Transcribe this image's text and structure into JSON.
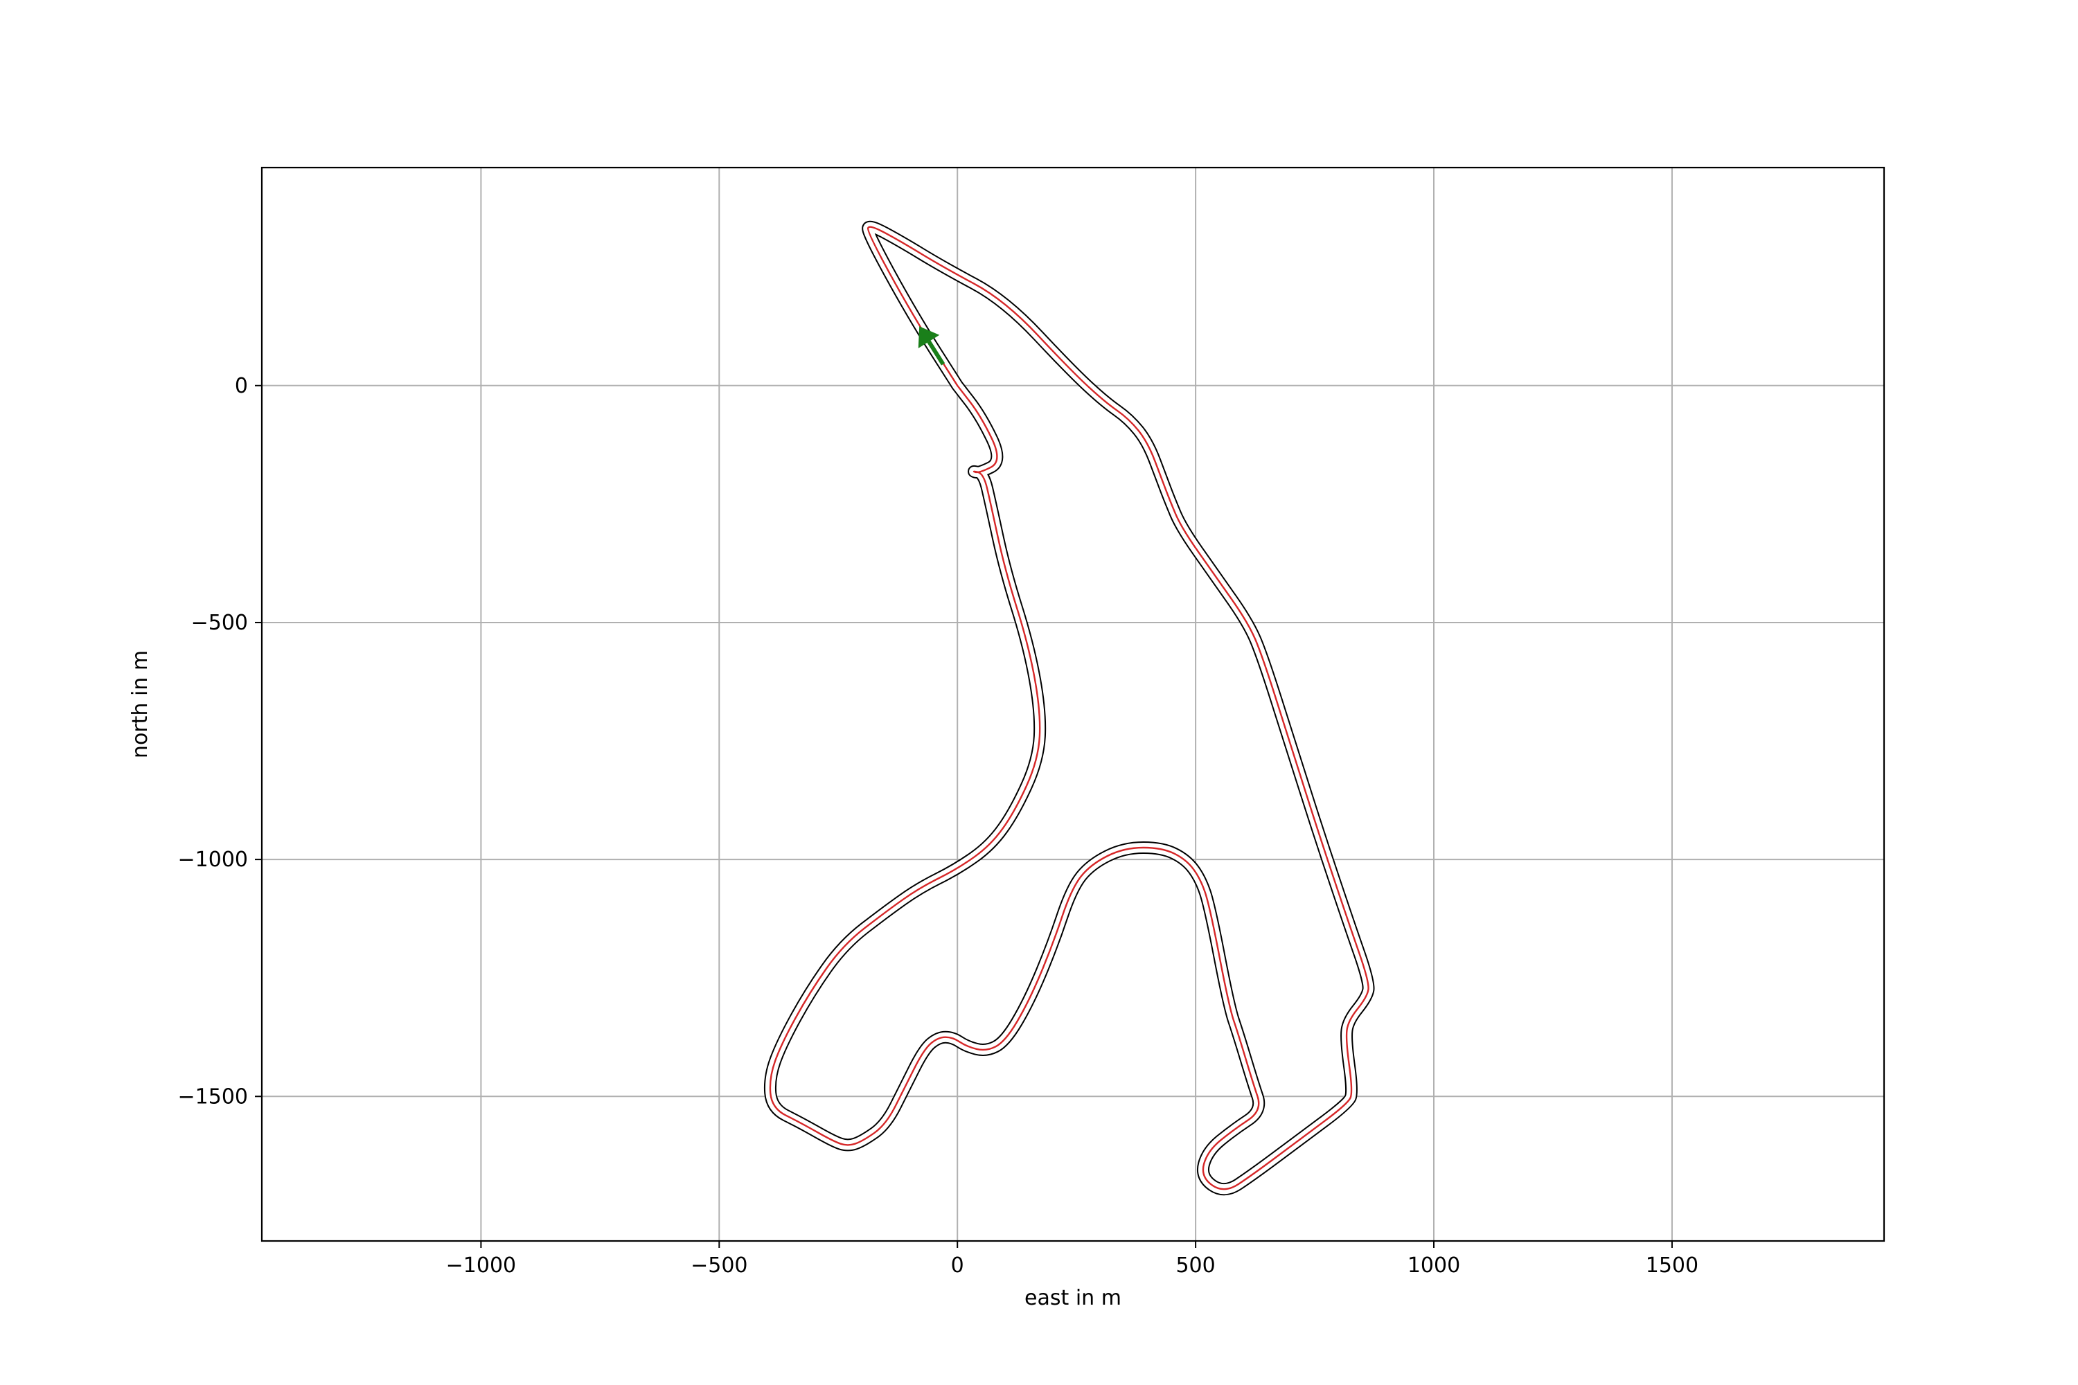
{
  "chart_data": {
    "type": "line",
    "title": "",
    "xlabel": "east in m",
    "ylabel": "north in m",
    "xlim": [
      -1460,
      1945
    ],
    "ylim": [
      -1805,
      460
    ],
    "xticks": [
      -1000,
      -500,
      0,
      500,
      1000,
      1500
    ],
    "yticks": [
      0,
      -500,
      -1000,
      -1500
    ],
    "xtick_labels": [
      "−1000",
      "−500",
      "0",
      "500",
      "1000",
      "1500"
    ],
    "ytick_labels": [
      "0",
      "−500",
      "−1000",
      "−1500"
    ],
    "grid": true,
    "legend": "none",
    "colors": {
      "track_border": "#000000",
      "ideal_line": "#d62728",
      "heading_arrow": "#1a7f1a",
      "grid": "#b0b0b0"
    },
    "series": [
      {
        "x": [
          0,
          -95,
          -190,
          -185,
          -120,
          -30,
          100,
          240,
          310,
          360,
          400,
          430,
          445,
          470,
          540,
          610,
          640,
          700,
          760,
          820,
          865,
          860,
          820,
          815,
          830,
          820,
          720,
          620,
          560,
          510,
          525,
          580,
          640,
          620,
          590,
          570,
          530,
          510,
          480,
          430,
          350,
          280,
          240,
          200,
          150,
          100,
          60,
          20,
          -10,
          -40,
          -70,
          -110,
          -150,
          -200,
          -230,
          -260,
          -330,
          -390,
          -395,
          -370,
          -310,
          -240,
          -150,
          -80,
          0,
          70,
          120,
          170,
          175,
          150,
          100,
          70,
          55,
          30,
          45,
          95,
          50,
          0
        ],
        "y": [
          0,
          150,
          325,
          340,
          305,
          250,
          180,
          30,
          -35,
          -70,
          -120,
          -200,
          -240,
          -300,
          -400,
          -500,
          -570,
          -760,
          -950,
          -1130,
          -1260,
          -1290,
          -1340,
          -1380,
          -1490,
          -1515,
          -1590,
          -1665,
          -1705,
          -1670,
          -1615,
          -1570,
          -1530,
          -1470,
          -1370,
          -1310,
          -1100,
          -1040,
          -1000,
          -975,
          -975,
          -1010,
          -1060,
          -1180,
          -1300,
          -1385,
          -1405,
          -1395,
          -1375,
          -1375,
          -1400,
          -1480,
          -1560,
          -1595,
          -1605,
          -1595,
          -1555,
          -1525,
          -1460,
          -1390,
          -1280,
          -1180,
          -1110,
          -1060,
          -1020,
          -970,
          -900,
          -790,
          -690,
          -550,
          -390,
          -250,
          -185,
          -180,
          -185,
          -160,
          -65,
          0
        ]
      }
    ],
    "heading": {
      "x": -30,
      "y": 45,
      "dx": -50,
      "dy": 80
    }
  }
}
